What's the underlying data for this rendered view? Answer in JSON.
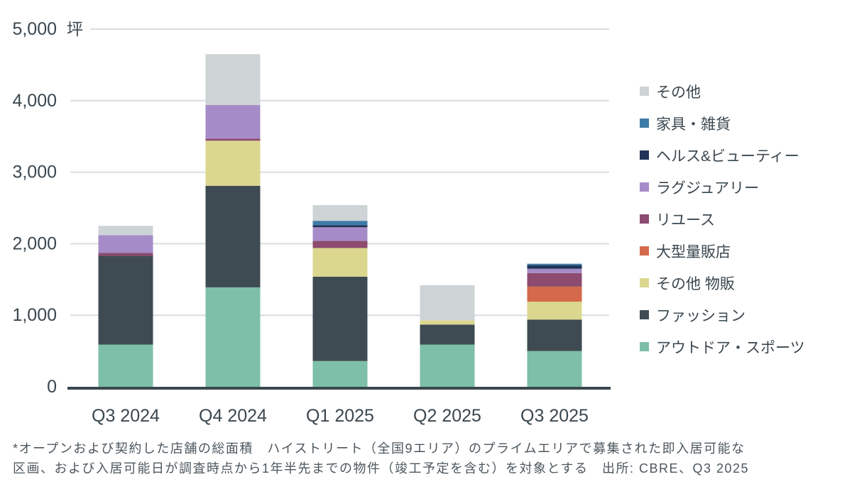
{
  "style": {
    "background": "#ffffff",
    "axis_color": "#3a474f",
    "gridline_color": "#d9dde0",
    "text_color": "#3a474f",
    "footnote_color": "#4c575e"
  },
  "chart_data": {
    "type": "bar",
    "stacked": true,
    "unit": "坪",
    "categories": [
      "Q3 2024",
      "Q4 2024",
      "Q1 2025",
      "Q2 2025",
      "Q3 2025"
    ],
    "series": [
      {
        "name": "アウトドア・スポーツ",
        "color": "#7dbfa8",
        "values": [
          590,
          1390,
          360,
          590,
          500
        ]
      },
      {
        "name": "ファッション",
        "color": "#3f4b52",
        "values": [
          1240,
          1420,
          1180,
          280,
          440
        ]
      },
      {
        "name": "その他 物販",
        "color": "#dbd78e",
        "values": [
          0,
          630,
          400,
          60,
          250
        ]
      },
      {
        "name": "大型量販店",
        "color": "#d4694b",
        "values": [
          0,
          0,
          0,
          0,
          210
        ]
      },
      {
        "name": "リユース",
        "color": "#8c4b6f",
        "values": [
          40,
          30,
          100,
          0,
          190
        ]
      },
      {
        "name": "ラグジュアリー",
        "color": "#a58cc8",
        "values": [
          250,
          470,
          190,
          0,
          60
        ]
      },
      {
        "name": "ヘルス&ビューティー",
        "color": "#203457",
        "values": [
          0,
          0,
          30,
          0,
          50
        ]
      },
      {
        "name": "家具・雑貨",
        "color": "#3e7ca8",
        "values": [
          0,
          0,
          60,
          0,
          20
        ]
      },
      {
        "name": "その他",
        "color": "#ced3d5",
        "values": [
          130,
          710,
          220,
          490,
          0
        ]
      }
    ],
    "totals": [
      2250,
      4650,
      2540,
      1420,
      1720
    ],
    "ylim": [
      0,
      5000
    ],
    "yticks": [
      0,
      1000,
      2000,
      3000,
      4000,
      5000
    ],
    "ytick_labels": [
      "0",
      "1,000",
      "2,000",
      "3,000",
      "4,000",
      "5,000"
    ],
    "grid": true,
    "legend_position": "right",
    "legend_order_top_to_bottom": [
      "その他",
      "家具・雑貨",
      "ヘルス&ビューティー",
      "ラグジュアリー",
      "リユース",
      "大型量販店",
      "その他 物販",
      "ファッション",
      "アウトドア・スポーツ"
    ]
  },
  "footnote": {
    "line1": "*オープンおよび契約した店舗の総面積　ハイストリート（全国9エリア）のプライムエリアで募集された即入居可能な",
    "line2": "区画、および入居可能日が調査時点から1年半先までの物件（竣工予定を含む）を対象とする　出所: CBRE、Q3 2025"
  }
}
